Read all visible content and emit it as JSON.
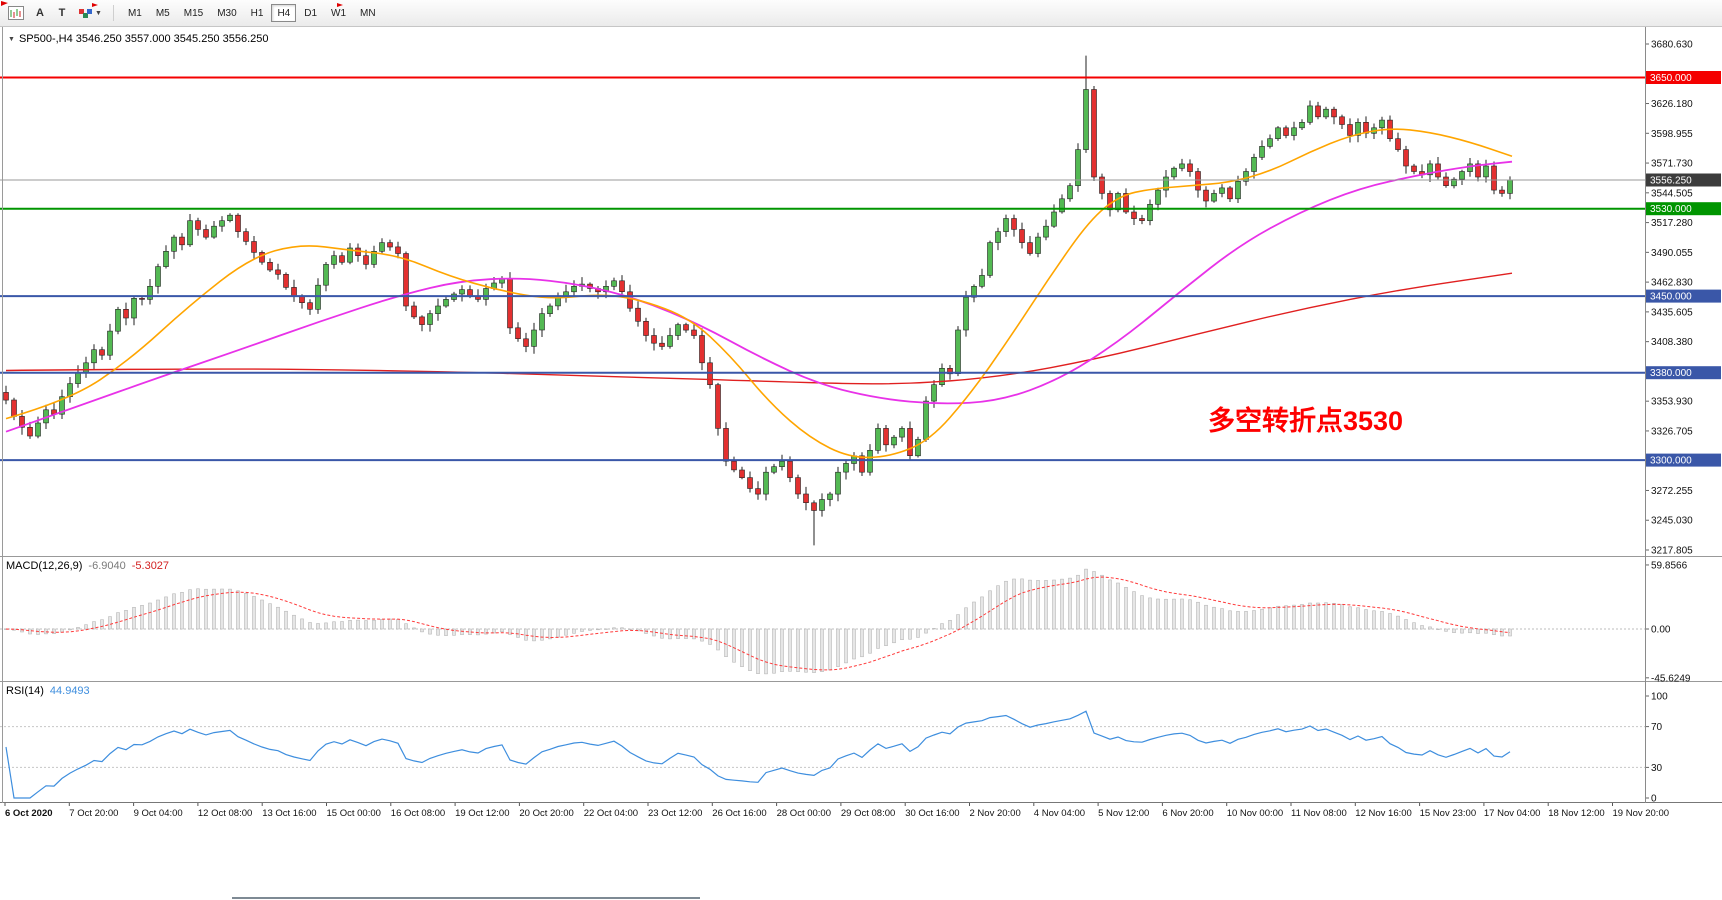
{
  "toolbar": {
    "button_a": "A",
    "button_t": "T",
    "timeframes": [
      "M1",
      "M5",
      "M15",
      "M30",
      "H1",
      "H4",
      "D1",
      "W1",
      "MN"
    ],
    "active_timeframe": "H4"
  },
  "chart": {
    "header": "SP500-,H4 3546.250 3557.000 3545.250 3556.250",
    "annotation": "多空转折点3530"
  },
  "macd": {
    "name": "MACD(12,26,9)",
    "value1": "-6.9040",
    "value2": "-5.3027",
    "axis_labels": [
      "59.8566",
      "0.00",
      "-45.6249"
    ],
    "axis_values": [
      59.8566,
      0,
      -45.6249
    ],
    "signal_color": "#FF3B3B",
    "histogram_fill": "#E6E6E6",
    "histogram_stroke": "#ACACAC"
  },
  "rsi": {
    "name": "RSI(14)",
    "value": "44.9493",
    "axis_labels": [
      "100",
      "70",
      "30",
      "0"
    ],
    "axis_values": [
      100,
      70,
      30,
      0
    ],
    "levels": [
      70,
      30
    ],
    "period": 14,
    "line_color": "#3E8EDE"
  },
  "chart_data": {
    "type": "candlestick",
    "symbol": "SP500-",
    "timeframe": "H4",
    "last_ohlc": {
      "open": 3546.25,
      "high": 3557.0,
      "low": 3545.25,
      "close": 3556.25
    },
    "y_axis": {
      "max": 3680.63,
      "min": 3217.805
    },
    "up_color": "#53B953",
    "down_color": "#E33030",
    "first_open": 3362,
    "closes": [
      3355,
      3340,
      3330,
      3322,
      3334,
      3346,
      3342,
      3358,
      3370,
      3380,
      3389,
      3401,
      3396,
      3418,
      3438,
      3430,
      3448,
      3447,
      3459,
      3477,
      3491,
      3504,
      3497,
      3519,
      3511,
      3504,
      3514,
      3519,
      3524,
      3509,
      3500,
      3490,
      3481,
      3474,
      3470,
      3458,
      3450,
      3444,
      3438,
      3460,
      3479,
      3487,
      3481,
      3494,
      3487,
      3479,
      3491,
      3499,
      3495,
      3489,
      3441,
      3431,
      3424,
      3434,
      3441,
      3447,
      3452,
      3456,
      3450,
      3447,
      3457,
      3462,
      3466,
      3421,
      3411,
      3404,
      3419,
      3434,
      3441,
      3449,
      3454,
      3459,
      3461,
      3457,
      3454,
      3459,
      3464,
      3454,
      3439,
      3427,
      3414,
      3407,
      3404,
      3414,
      3424,
      3419,
      3414,
      3389,
      3369,
      3329,
      3299,
      3291,
      3284,
      3274,
      3269,
      3289,
      3294,
      3299,
      3284,
      3269,
      3261,
      3254,
      3264,
      3269,
      3289,
      3297,
      3304,
      3289,
      3309,
      3329,
      3314,
      3321,
      3329,
      3304,
      3319,
      3354,
      3369,
      3384,
      3379,
      3419,
      3449,
      3459,
      3469,
      3499,
      3509,
      3521,
      3511,
      3499,
      3489,
      3504,
      3514,
      3527,
      3539,
      3551,
      3584,
      3639,
      3559,
      3544,
      3529,
      3544,
      3527,
      3521,
      3519,
      3534,
      3547,
      3559,
      3567,
      3571,
      3564,
      3547,
      3537,
      3544,
      3549,
      3539,
      3555,
      3564,
      3577,
      3587,
      3594,
      3604,
      3597,
      3604,
      3609,
      3624,
      3614,
      3621,
      3614,
      3607,
      3597,
      3609,
      3599,
      3604,
      3611,
      3594,
      3584,
      3569,
      3564,
      3561,
      3571,
      3559,
      3551,
      3557,
      3564,
      3571,
      3559,
      3569,
      3547,
      3544,
      3556.25
    ],
    "spikes": {
      "high_index": 135,
      "high_price": 3670,
      "low_index": 101,
      "low_price": 3222
    },
    "horizontal_lines": [
      {
        "price": 3650,
        "label": "3650.000",
        "color": "#F40000"
      },
      {
        "price": 3530,
        "label": "3530.000",
        "color": "#009500"
      },
      {
        "price": 3450,
        "label": "3450.000",
        "color": "#3A57A8"
      },
      {
        "price": 3380,
        "label": "3380.000",
        "color": "#3A57A8"
      },
      {
        "price": 3300,
        "label": "3300.000",
        "color": "#3A57A8"
      }
    ],
    "current_price": {
      "price": 3556.25,
      "label": "3556.250",
      "color": "#3C3C3C"
    },
    "moving_averages": [
      {
        "name": "slow",
        "color": "#E02020",
        "width": 1.4,
        "points": [
          [
            6,
            3382
          ],
          [
            200,
            3384
          ],
          [
            400,
            3382
          ],
          [
            600,
            3377
          ],
          [
            800,
            3371
          ],
          [
            900,
            3369
          ],
          [
            1000,
            3376
          ],
          [
            1100,
            3393
          ],
          [
            1200,
            3416
          ],
          [
            1300,
            3438
          ],
          [
            1400,
            3456
          ],
          [
            1512,
            3471
          ]
        ]
      },
      {
        "name": "mid",
        "color": "#E832E8",
        "width": 1.8,
        "points": [
          [
            6,
            3326
          ],
          [
            80,
            3350
          ],
          [
            160,
            3376
          ],
          [
            240,
            3401
          ],
          [
            320,
            3427
          ],
          [
            400,
            3451
          ],
          [
            460,
            3464
          ],
          [
            520,
            3467
          ],
          [
            580,
            3461
          ],
          [
            640,
            3447
          ],
          [
            700,
            3424
          ],
          [
            760,
            3394
          ],
          [
            820,
            3369
          ],
          [
            880,
            3356
          ],
          [
            940,
            3351
          ],
          [
            1000,
            3354
          ],
          [
            1060,
            3374
          ],
          [
            1120,
            3409
          ],
          [
            1180,
            3454
          ],
          [
            1240,
            3497
          ],
          [
            1300,
            3527
          ],
          [
            1360,
            3549
          ],
          [
            1420,
            3561
          ],
          [
            1470,
            3569
          ],
          [
            1512,
            3573
          ]
        ]
      },
      {
        "name": "fast",
        "color": "#FFA500",
        "width": 1.6,
        "points": [
          [
            6,
            3338
          ],
          [
            70,
            3355
          ],
          [
            130,
            3392
          ],
          [
            190,
            3442
          ],
          [
            250,
            3485
          ],
          [
            300,
            3498
          ],
          [
            350,
            3492
          ],
          [
            400,
            3487
          ],
          [
            450,
            3468
          ],
          [
            500,
            3455
          ],
          [
            550,
            3447
          ],
          [
            600,
            3452
          ],
          [
            640,
            3447
          ],
          [
            690,
            3430
          ],
          [
            730,
            3396
          ],
          [
            770,
            3352
          ],
          [
            810,
            3320
          ],
          [
            850,
            3302
          ],
          [
            890,
            3303
          ],
          [
            930,
            3318
          ],
          [
            970,
            3360
          ],
          [
            1010,
            3412
          ],
          [
            1050,
            3468
          ],
          [
            1090,
            3520
          ],
          [
            1120,
            3542
          ],
          [
            1150,
            3548
          ],
          [
            1190,
            3551
          ],
          [
            1230,
            3554
          ],
          [
            1270,
            3564
          ],
          [
            1310,
            3582
          ],
          [
            1350,
            3597
          ],
          [
            1390,
            3604
          ],
          [
            1430,
            3600
          ],
          [
            1470,
            3591
          ],
          [
            1512,
            3578
          ]
        ]
      }
    ],
    "price_axis_labels": [
      "3680.630",
      "3626.180",
      "3598.955",
      "3571.730",
      "3544.505",
      "3517.280",
      "3490.055",
      "3462.830",
      "3435.605",
      "3408.380",
      "3353.930",
      "3326.705",
      "3272.255",
      "3245.030",
      "3217.805"
    ],
    "time_axis_labels": [
      "6 Oct 2020",
      "7 Oct 20:00",
      "9 Oct 04:00",
      "12 Oct 08:00",
      "13 Oct 16:00",
      "15 Oct 00:00",
      "16 Oct 08:00",
      "19 Oct 12:00",
      "20 Oct 20:00",
      "22 Oct 04:00",
      "23 Oct 12:00",
      "26 Oct 16:00",
      "28 Oct 00:00",
      "29 Oct 08:00",
      "30 Oct 16:00",
      "2 Nov 20:00",
      "4 Nov 04:00",
      "5 Nov 12:00",
      "6 Nov 20:00",
      "10 Nov 00:00",
      "11 Nov 08:00",
      "12 Nov 16:00",
      "15 Nov 23:00",
      "17 Nov 04:00",
      "18 Nov 12:00",
      "19 Nov 20:00"
    ]
  }
}
